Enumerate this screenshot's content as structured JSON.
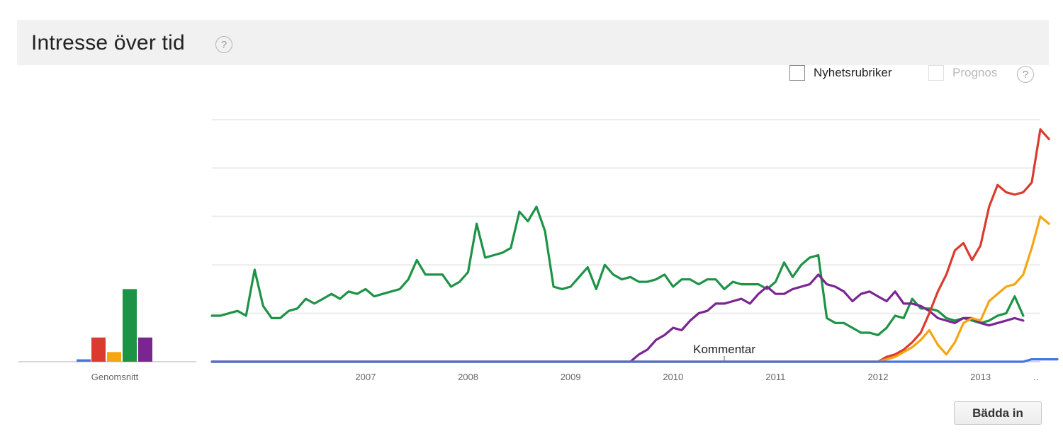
{
  "header": {
    "title": "Intresse över tid",
    "help_glyph": "?"
  },
  "options": {
    "news_headlines_label": "Nyhetsrubriker",
    "forecast_label": "Prognos",
    "forecast_help_glyph": "?"
  },
  "embed_button_label": "Bädda in",
  "chart_data": {
    "type": "line",
    "title": "",
    "x_start": "2006-01",
    "x_step": "month",
    "x_tick_labels": [
      "2007",
      "2008",
      "2009",
      "2010",
      "2011",
      "2012",
      "2013",
      ".."
    ],
    "average_label": "Genomsnitt",
    "annotation": {
      "text": "Kommentar",
      "x": "2011-01"
    },
    "ylim": [
      0,
      100
    ],
    "grid": true,
    "colors": {
      "blue": "#4374e0",
      "red": "#db3b2f",
      "orange": "#f5a412",
      "green": "#1d9346",
      "purple": "#7a2592"
    },
    "series": [
      {
        "color": "#1d9346",
        "average": 30,
        "values": [
          19,
          19,
          20,
          21,
          19,
          38,
          23,
          18,
          18,
          21,
          22,
          26,
          24,
          26,
          28,
          26,
          29,
          28,
          30,
          27,
          28,
          29,
          30,
          34,
          42,
          36,
          36,
          36,
          31,
          33,
          37,
          57,
          43,
          44,
          45,
          47,
          62,
          58,
          64,
          54,
          31,
          30,
          31,
          35,
          39,
          30,
          40,
          36,
          34,
          35,
          33,
          33,
          34,
          36,
          31,
          34,
          34,
          32,
          34,
          34,
          30,
          33,
          32,
          32,
          32,
          30,
          33,
          41,
          35,
          40,
          43,
          44,
          18,
          16,
          16,
          14,
          12,
          12,
          11,
          14,
          19,
          18,
          26,
          22,
          22,
          21,
          18,
          17,
          18,
          17,
          16,
          17,
          19,
          20,
          27,
          19
        ]
      },
      {
        "color": "#7a2592",
        "average": 10,
        "values": [
          0,
          0,
          0,
          0,
          0,
          0,
          0,
          0,
          0,
          0,
          0,
          0,
          0,
          0,
          0,
          0,
          0,
          0,
          0,
          0,
          0,
          0,
          0,
          0,
          0,
          0,
          0,
          0,
          0,
          0,
          0,
          0,
          0,
          0,
          0,
          0,
          0,
          0,
          0,
          0,
          0,
          0,
          0,
          0,
          0,
          0,
          0,
          0,
          0,
          0,
          3,
          5,
          9,
          11,
          14,
          13,
          17,
          20,
          21,
          24,
          24,
          25,
          26,
          24,
          28,
          31,
          28,
          28,
          30,
          31,
          32,
          36,
          32,
          31,
          29,
          25,
          28,
          29,
          27,
          25,
          29,
          24,
          24,
          23,
          21,
          18,
          17,
          16,
          18,
          18,
          16,
          15,
          16,
          17,
          18,
          17
        ]
      },
      {
        "color": "#db3b2f",
        "average": 10,
        "values": [
          0,
          0,
          0,
          0,
          0,
          0,
          0,
          0,
          0,
          0,
          0,
          0,
          0,
          0,
          0,
          0,
          0,
          0,
          0,
          0,
          0,
          0,
          0,
          0,
          0,
          0,
          0,
          0,
          0,
          0,
          0,
          0,
          0,
          0,
          0,
          0,
          0,
          0,
          0,
          0,
          0,
          0,
          0,
          0,
          0,
          0,
          0,
          0,
          0,
          0,
          0,
          0,
          0,
          0,
          0,
          0,
          0,
          0,
          0,
          0,
          0,
          0,
          0,
          0,
          0,
          0,
          0,
          0,
          0,
          0,
          0,
          0,
          0,
          0,
          0,
          0,
          0,
          0,
          0,
          2,
          3,
          5,
          8,
          12,
          20,
          29,
          36,
          46,
          49,
          42,
          48,
          64,
          73,
          70,
          69,
          70,
          74,
          96,
          92
        ]
      },
      {
        "color": "#f5a412",
        "average": 4,
        "values": [
          0,
          0,
          0,
          0,
          0,
          0,
          0,
          0,
          0,
          0,
          0,
          0,
          0,
          0,
          0,
          0,
          0,
          0,
          0,
          0,
          0,
          0,
          0,
          0,
          0,
          0,
          0,
          0,
          0,
          0,
          0,
          0,
          0,
          0,
          0,
          0,
          0,
          0,
          0,
          0,
          0,
          0,
          0,
          0,
          0,
          0,
          0,
          0,
          0,
          0,
          0,
          0,
          0,
          0,
          0,
          0,
          0,
          0,
          0,
          0,
          0,
          0,
          0,
          0,
          0,
          0,
          0,
          0,
          0,
          0,
          0,
          0,
          0,
          0,
          0,
          0,
          0,
          0,
          0,
          1,
          2,
          4,
          6,
          9,
          13,
          7,
          3,
          8,
          16,
          18,
          17,
          25,
          28,
          31,
          32,
          36,
          47,
          60,
          57
        ]
      },
      {
        "color": "#4374e0",
        "average": 1,
        "values": [
          0,
          0,
          0,
          0,
          0,
          0,
          0,
          0,
          0,
          0,
          0,
          0,
          0,
          0,
          0,
          0,
          0,
          0,
          0,
          0,
          0,
          0,
          0,
          0,
          0,
          0,
          0,
          0,
          0,
          0,
          0,
          0,
          0,
          0,
          0,
          0,
          0,
          0,
          0,
          0,
          0,
          0,
          0,
          0,
          0,
          0,
          0,
          0,
          0,
          0,
          0,
          0,
          0,
          0,
          0,
          0,
          0,
          0,
          0,
          0,
          0,
          0,
          0,
          0,
          0,
          0,
          0,
          0,
          0,
          0,
          0,
          0,
          0,
          0,
          0,
          0,
          0,
          0,
          0,
          0,
          0,
          0,
          0,
          0,
          0,
          0,
          0,
          0,
          0,
          0,
          0,
          0,
          0,
          0,
          0,
          0,
          1,
          1,
          1,
          1
        ]
      }
    ]
  }
}
